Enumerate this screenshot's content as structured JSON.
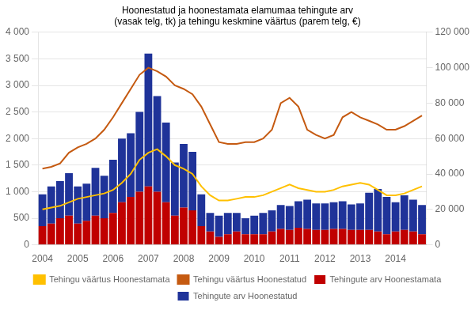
{
  "chart_data": {
    "type": "bar",
    "title": "Hoonestatud ja hoonestamata elamumaa tehingute arv\n(vasak telg, tk) ja tehingu keskmine väärtus (parem telg, €)",
    "categories": [
      "2004",
      null,
      null,
      null,
      "2005",
      null,
      null,
      null,
      "2006",
      null,
      null,
      null,
      "2007",
      null,
      null,
      null,
      "2008",
      null,
      null,
      null,
      "2009",
      null,
      null,
      null,
      "2010",
      null,
      null,
      null,
      "2011",
      null,
      null,
      null,
      "2012",
      null,
      null,
      null,
      "2013",
      null,
      null,
      null,
      "2014",
      null,
      null,
      null
    ],
    "stacked": true,
    "grid": true,
    "legend": "bottom",
    "ylim": [
      0,
      4000
    ],
    "yticks": [
      0,
      500,
      {
        "value": 1000,
        "label": "1 000"
      },
      {
        "value": 1500,
        "label": "1 500"
      },
      {
        "value": 2000,
        "label": "2 000"
      },
      {
        "value": 2500,
        "label": "2 500"
      },
      {
        "value": 3000,
        "label": "3 000"
      },
      {
        "value": 3500,
        "label": "3 500"
      },
      {
        "value": 4000,
        "label": "4 000"
      }
    ],
    "y2lim": [
      0,
      120000
    ],
    "y2ticks": [
      0,
      {
        "value": 20000,
        "label": "20 000"
      },
      {
        "value": 40000,
        "label": "40 000"
      },
      {
        "value": 60000,
        "label": "60 000"
      },
      {
        "value": 80000,
        "label": "80 000"
      },
      {
        "value": 100000,
        "label": "100 000"
      },
      {
        "value": 120000,
        "label": "120 000"
      }
    ],
    "series": [
      {
        "name": "Tehingute arv Hoonestamata",
        "type": "bar",
        "color": "#c00000",
        "values": [
          350,
          400,
          500,
          550,
          400,
          450,
          550,
          500,
          600,
          800,
          900,
          1000,
          1100,
          1000,
          800,
          550,
          700,
          650,
          350,
          250,
          150,
          200,
          250,
          200,
          200,
          200,
          250,
          300,
          280,
          320,
          300,
          280,
          280,
          300,
          300,
          280,
          280,
          280,
          250,
          200,
          250,
          280,
          250,
          200
        ]
      },
      {
        "name": "Tehingute arv Hoonestatud",
        "type": "bar",
        "color": "#1f3399",
        "values": [
          600,
          700,
          700,
          800,
          700,
          700,
          900,
          800,
          1000,
          1200,
          1200,
          1500,
          2500,
          1800,
          1500,
          1000,
          1200,
          1100,
          600,
          350,
          400,
          400,
          350,
          300,
          350,
          400,
          400,
          450,
          450,
          500,
          550,
          500,
          500,
          500,
          520,
          480,
          500,
          700,
          800,
          700,
          550,
          650,
          600,
          550
        ]
      },
      {
        "name": "Tehingu väärtus Hoonestamata",
        "type": "line",
        "axis": "y2",
        "color": "#ffc000",
        "values": [
          20000,
          21000,
          22000,
          24000,
          26000,
          27000,
          28000,
          29000,
          31000,
          35000,
          40000,
          48000,
          52000,
          54000,
          50000,
          45000,
          43000,
          40000,
          33000,
          28000,
          25000,
          25000,
          26000,
          27000,
          27000,
          28000,
          30000,
          32000,
          34000,
          32000,
          31000,
          30000,
          30000,
          31000,
          33000,
          34000,
          35000,
          34000,
          31000,
          28000,
          28000,
          29000,
          31000,
          33000
        ]
      },
      {
        "name": "Tehingu väärtus Hoonestatud",
        "type": "line",
        "axis": "y2",
        "color": "#c55a11",
        "values": [
          43000,
          44000,
          46000,
          52000,
          55000,
          57000,
          60000,
          65000,
          72000,
          80000,
          88000,
          96000,
          100000,
          98000,
          95000,
          90000,
          88000,
          85000,
          78000,
          68000,
          58000,
          57000,
          57000,
          58000,
          58000,
          60000,
          65000,
          80000,
          83000,
          78000,
          65000,
          62000,
          60000,
          62000,
          72000,
          75000,
          72000,
          70000,
          68000,
          65000,
          65000,
          67000,
          70000,
          73000
        ]
      }
    ]
  }
}
